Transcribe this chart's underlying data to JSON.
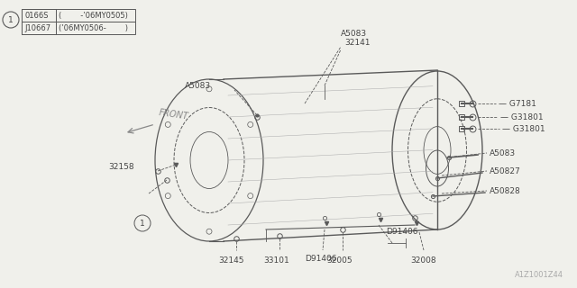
{
  "bg_color": "#f0f0eb",
  "line_color": "#5a5a5a",
  "text_color": "#444444",
  "gray_text": "#888888",
  "watermark": "A1Z1001Z44",
  "table_rows": [
    [
      "0166S",
      "(        -’06MY0505)"
    ],
    [
      "J10667",
      "(’06MY0506-        )"
    ]
  ],
  "label_fs": 6.5
}
